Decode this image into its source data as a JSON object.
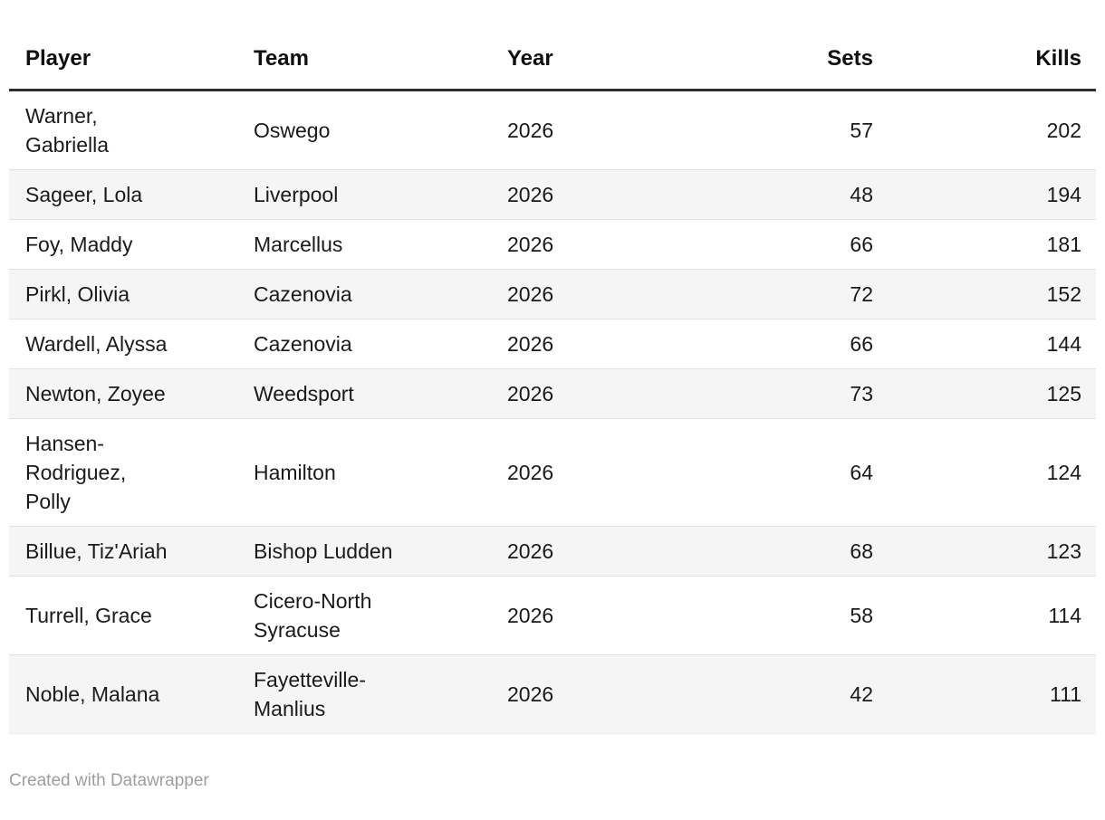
{
  "table": {
    "columns": [
      {
        "key": "player",
        "label": "Player",
        "align": "left"
      },
      {
        "key": "team",
        "label": "Team",
        "align": "left"
      },
      {
        "key": "year",
        "label": "Year",
        "align": "left"
      },
      {
        "key": "sets",
        "label": "Sets",
        "align": "right"
      },
      {
        "key": "kills",
        "label": "Kills",
        "align": "right"
      }
    ],
    "rows": [
      {
        "player": "Warner, Gabriella",
        "team": "Oswego",
        "year": "2026",
        "sets": "57",
        "kills": "202"
      },
      {
        "player": "Sageer, Lola",
        "team": "Liverpool",
        "year": "2026",
        "sets": "48",
        "kills": "194"
      },
      {
        "player": "Foy, Maddy",
        "team": "Marcellus",
        "year": "2026",
        "sets": "66",
        "kills": "181"
      },
      {
        "player": "Pirkl, Olivia",
        "team": "Cazenovia",
        "year": "2026",
        "sets": "72",
        "kills": "152"
      },
      {
        "player": "Wardell, Alyssa",
        "team": "Cazenovia",
        "year": "2026",
        "sets": "66",
        "kills": "144"
      },
      {
        "player": "Newton, Zoyee",
        "team": "Weedsport",
        "year": "2026",
        "sets": "73",
        "kills": "125"
      },
      {
        "player": "Hansen-Rodriguez, Polly",
        "team": "Hamilton",
        "year": "2026",
        "sets": "64",
        "kills": "124"
      },
      {
        "player": "Billue, Tiz'Ariah",
        "team": "Bishop Ludden",
        "year": "2026",
        "sets": "68",
        "kills": "123"
      },
      {
        "player": "Turrell, Grace",
        "team": "Cicero-North Syracuse",
        "year": "2026",
        "sets": "58",
        "kills": "114"
      },
      {
        "player": "Noble, Malana",
        "team": "Fayetteville-Manlius",
        "year": "2026",
        "sets": "42",
        "kills": "111"
      }
    ]
  },
  "footer": {
    "credit": "Created with Datawrapper"
  },
  "colors": {
    "header_rule": "#2e2e2e",
    "row_separator": "#e3e3e3",
    "stripe_background": "#f5f5f5",
    "text": "#1a1a1a",
    "footer_text": "#9e9e9e"
  },
  "chart_data": {
    "type": "table",
    "title": "",
    "columns": [
      "Player",
      "Team",
      "Year",
      "Sets",
      "Kills"
    ],
    "rows": [
      [
        "Warner, Gabriella",
        "Oswego",
        2026,
        57,
        202
      ],
      [
        "Sageer, Lola",
        "Liverpool",
        2026,
        48,
        194
      ],
      [
        "Foy, Maddy",
        "Marcellus",
        2026,
        66,
        181
      ],
      [
        "Pirkl, Olivia",
        "Cazenovia",
        2026,
        72,
        152
      ],
      [
        "Wardell, Alyssa",
        "Cazenovia",
        2026,
        66,
        144
      ],
      [
        "Newton, Zoyee",
        "Weedsport",
        2026,
        73,
        125
      ],
      [
        "Hansen-Rodriguez, Polly",
        "Hamilton",
        2026,
        64,
        124
      ],
      [
        "Billue, Tiz'Ariah",
        "Bishop Ludden",
        2026,
        68,
        123
      ],
      [
        "Turrell, Grace",
        "Cicero-North Syracuse",
        2026,
        58,
        114
      ],
      [
        "Noble, Malana",
        "Fayetteville-Manlius",
        2026,
        42,
        111
      ]
    ]
  }
}
